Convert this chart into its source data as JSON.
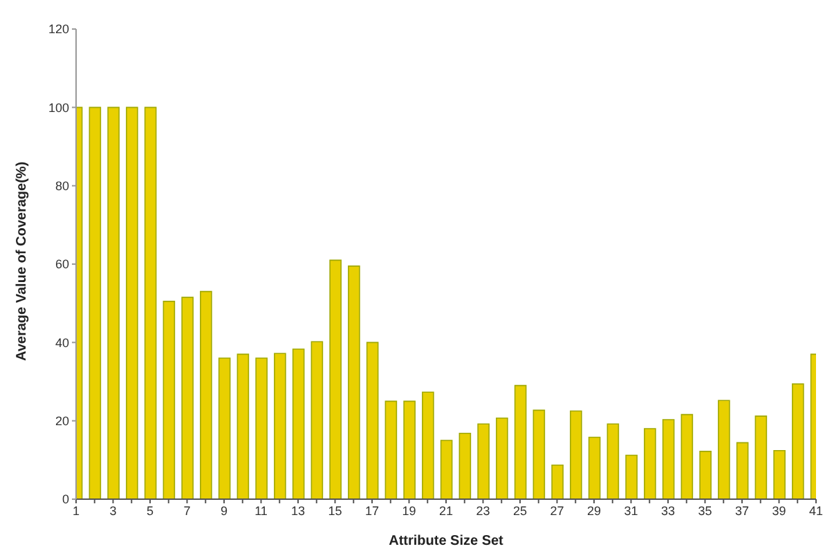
{
  "chart_data": {
    "type": "bar",
    "xlabel": "Attribute Size Set",
    "ylabel": "Average Value of Coverage(%)",
    "x": [
      1,
      2,
      3,
      4,
      5,
      6,
      7,
      8,
      9,
      10,
      11,
      12,
      13,
      14,
      15,
      16,
      17,
      18,
      19,
      20,
      21,
      22,
      23,
      24,
      25,
      26,
      27,
      28,
      29,
      30,
      31,
      32,
      33,
      34,
      35,
      36,
      37,
      38,
      39,
      40,
      41
    ],
    "values": [
      100,
      100,
      100,
      100,
      100,
      50.5,
      51.5,
      53,
      36,
      37,
      36,
      37.2,
      38.3,
      40.2,
      61,
      59.5,
      40,
      25,
      25,
      27.3,
      15,
      16.8,
      19.2,
      20.7,
      29,
      22.7,
      8.7,
      22.5,
      15.8,
      19.2,
      11.2,
      18,
      20.3,
      21.6,
      12.2,
      25.2,
      14.4,
      21.2,
      12.4,
      29.4,
      37
    ],
    "color": "#e8d000",
    "xlim": [
      1,
      41
    ],
    "xticks": [
      1,
      {
        "value": 2,
        "label": null
      },
      3,
      {
        "value": 4,
        "label": null
      },
      5,
      {
        "value": 6,
        "label": null
      },
      7,
      {
        "value": 8,
        "label": null
      },
      9,
      {
        "value": 10,
        "label": null
      },
      11,
      {
        "value": 12,
        "label": null
      },
      13,
      {
        "value": 14,
        "label": null
      },
      15,
      {
        "value": 16,
        "label": null
      },
      17,
      {
        "value": 18,
        "label": null
      },
      19,
      {
        "value": 20,
        "label": null
      },
      21,
      {
        "value": 22,
        "label": null
      },
      23,
      {
        "value": 24,
        "label": null
      },
      25,
      {
        "value": 26,
        "label": null
      },
      27,
      {
        "value": 28,
        "label": null
      },
      29,
      {
        "value": 30,
        "label": null
      },
      31,
      {
        "value": 32,
        "label": null
      },
      33,
      {
        "value": 34,
        "label": null
      },
      35,
      {
        "value": 36,
        "label": null
      },
      37,
      {
        "value": 38,
        "label": null
      },
      39,
      {
        "value": 40,
        "label": null
      },
      41
    ],
    "ylim": [
      0,
      120
    ],
    "yticks": [
      0,
      20,
      40,
      60,
      80,
      100,
      120
    ],
    "grid": false,
    "legend": false
  }
}
